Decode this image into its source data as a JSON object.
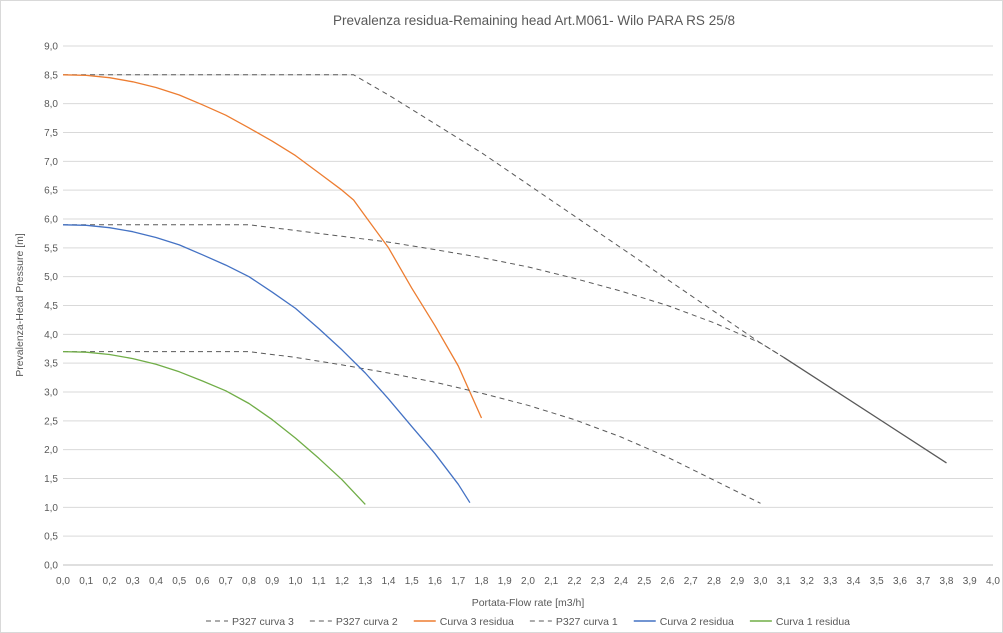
{
  "chart_data": {
    "type": "line",
    "title": "Prevalenza residua-Remaining head Art.M061-   Wilo PARA RS 25/8",
    "xlabel": "Portata-Flow rate [m3/h]",
    "ylabel": "Prevalenza-Head Pressure [m]",
    "xlim": [
      0,
      4.0
    ],
    "ylim": [
      0,
      9.0
    ],
    "x_ticks": [
      "0,0",
      "0,1",
      "0,2",
      "0,3",
      "0,4",
      "0,5",
      "0,6",
      "0,7",
      "0,8",
      "0,9",
      "1,0",
      "1,1",
      "1,2",
      "1,3",
      "1,4",
      "1,5",
      "1,6",
      "1,7",
      "1,8",
      "1,9",
      "2,0",
      "2,1",
      "2,2",
      "2,3",
      "2,4",
      "2,5",
      "2,6",
      "2,7",
      "2,8",
      "2,9",
      "3,0",
      "3,1",
      "3,2",
      "3,3",
      "3,4",
      "3,5",
      "3,6",
      "3,7",
      "3,8",
      "3,9",
      "4,0"
    ],
    "y_ticks": [
      "0,0",
      "0,5",
      "1,0",
      "1,5",
      "2,0",
      "2,5",
      "3,0",
      "3,5",
      "4,0",
      "4,5",
      "5,0",
      "5,5",
      "6,0",
      "6,5",
      "7,0",
      "7,5",
      "8,0",
      "8,5",
      "9,0"
    ],
    "grid": "horizontal",
    "legend_position": "bottom",
    "series": [
      {
        "name": "P327 curva 3",
        "color": "#595959",
        "dash": true,
        "points": [
          [
            0,
            8.5
          ],
          [
            1.25,
            8.5
          ],
          [
            1.4,
            8.15
          ],
          [
            1.6,
            7.65
          ],
          [
            1.8,
            7.15
          ],
          [
            2.0,
            6.6
          ],
          [
            2.2,
            6.05
          ],
          [
            2.4,
            5.5
          ],
          [
            2.6,
            4.95
          ],
          [
            2.8,
            4.4
          ],
          [
            3.0,
            3.85
          ],
          [
            3.1,
            3.6
          ]
        ]
      },
      {
        "name": "P327 curva 2",
        "color": "#595959",
        "dash": true,
        "points": [
          [
            0,
            5.9
          ],
          [
            0.8,
            5.9
          ],
          [
            1.0,
            5.8
          ],
          [
            1.2,
            5.7
          ],
          [
            1.4,
            5.6
          ],
          [
            1.6,
            5.47
          ],
          [
            1.8,
            5.33
          ],
          [
            2.0,
            5.17
          ],
          [
            2.2,
            4.97
          ],
          [
            2.4,
            4.75
          ],
          [
            2.6,
            4.5
          ],
          [
            2.8,
            4.2
          ],
          [
            3.0,
            3.85
          ],
          [
            3.1,
            3.6
          ]
        ]
      },
      {
        "name": "Curva 3 residua",
        "color": "#ed7d31",
        "dash": false,
        "points": [
          [
            0,
            8.5
          ],
          [
            0.1,
            8.49
          ],
          [
            0.2,
            8.45
          ],
          [
            0.3,
            8.38
          ],
          [
            0.4,
            8.28
          ],
          [
            0.5,
            8.15
          ],
          [
            0.6,
            7.98
          ],
          [
            0.7,
            7.8
          ],
          [
            0.8,
            7.58
          ],
          [
            0.9,
            7.35
          ],
          [
            1.0,
            7.1
          ],
          [
            1.1,
            6.8
          ],
          [
            1.2,
            6.5
          ],
          [
            1.25,
            6.33
          ],
          [
            1.3,
            6.05
          ],
          [
            1.4,
            5.5
          ],
          [
            1.5,
            4.8
          ],
          [
            1.6,
            4.15
          ],
          [
            1.7,
            3.45
          ],
          [
            1.8,
            2.55
          ]
        ]
      },
      {
        "name": "P327 curva 1",
        "color": "#595959",
        "dash": true,
        "points": [
          [
            0,
            3.7
          ],
          [
            0.8,
            3.7
          ],
          [
            1.0,
            3.6
          ],
          [
            1.2,
            3.47
          ],
          [
            1.4,
            3.33
          ],
          [
            1.6,
            3.17
          ],
          [
            1.8,
            2.98
          ],
          [
            2.0,
            2.77
          ],
          [
            2.2,
            2.52
          ],
          [
            2.4,
            2.22
          ],
          [
            2.6,
            1.87
          ],
          [
            2.8,
            1.47
          ],
          [
            3.0,
            1.07
          ]
        ]
      },
      {
        "name": "Curva 2 residua",
        "color": "#4472c4",
        "dash": false,
        "points": [
          [
            0,
            5.9
          ],
          [
            0.1,
            5.89
          ],
          [
            0.2,
            5.85
          ],
          [
            0.3,
            5.78
          ],
          [
            0.4,
            5.68
          ],
          [
            0.5,
            5.55
          ],
          [
            0.6,
            5.38
          ],
          [
            0.7,
            5.2
          ],
          [
            0.8,
            5.0
          ],
          [
            0.9,
            4.73
          ],
          [
            1.0,
            4.45
          ],
          [
            1.1,
            4.1
          ],
          [
            1.2,
            3.73
          ],
          [
            1.3,
            3.33
          ],
          [
            1.4,
            2.88
          ],
          [
            1.5,
            2.4
          ],
          [
            1.6,
            1.93
          ],
          [
            1.7,
            1.4
          ],
          [
            1.75,
            1.08
          ]
        ]
      },
      {
        "name": "Curva 1 residua",
        "color": "#70ad47",
        "dash": false,
        "points": [
          [
            0,
            3.7
          ],
          [
            0.1,
            3.69
          ],
          [
            0.2,
            3.65
          ],
          [
            0.3,
            3.58
          ],
          [
            0.4,
            3.48
          ],
          [
            0.5,
            3.35
          ],
          [
            0.6,
            3.19
          ],
          [
            0.7,
            3.02
          ],
          [
            0.8,
            2.8
          ],
          [
            0.9,
            2.52
          ],
          [
            1.0,
            2.2
          ],
          [
            1.1,
            1.85
          ],
          [
            1.2,
            1.48
          ],
          [
            1.3,
            1.05
          ]
        ]
      },
      {
        "name": "",
        "color": "#595959",
        "dash": false,
        "points": [
          [
            3.1,
            3.6
          ],
          [
            3.8,
            1.77
          ]
        ]
      }
    ],
    "legend": [
      "P327 curva 3",
      "P327 curva 2",
      "Curva 3 residua",
      "P327 curva 1",
      "Curva 2 residua",
      "Curva 1 residua"
    ]
  }
}
